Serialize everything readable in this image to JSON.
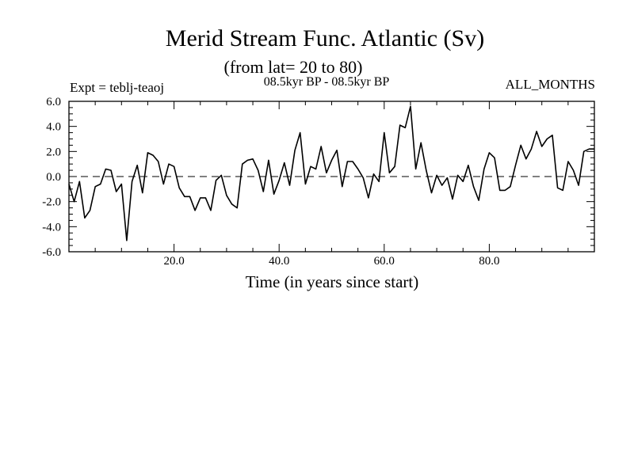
{
  "chart_data": {
    "type": "line",
    "title": "Merid Stream Func. Atlantic (Sv)",
    "subtitle": "(from lat= 20 to 80)",
    "experiment_label": "Expt = teblj-teaoj",
    "period_label": "08.5kyr BP - 08.5kyr BP",
    "months_label": "ALL_MONTHS",
    "xlabel": "Time (in years since start)",
    "ylabel": "",
    "xlim": [
      0,
      100
    ],
    "ylim": [
      -6,
      6
    ],
    "x_ticks": [
      20,
      40,
      60,
      80
    ],
    "x_tick_labels": [
      "20.0",
      "40.0",
      "60.0",
      "80.0"
    ],
    "y_ticks": [
      -6,
      -4,
      -2,
      0,
      2,
      4,
      6
    ],
    "y_tick_labels": [
      "-6.0",
      "-4.0",
      "-2.0",
      "0.0",
      "2.0",
      "4.0",
      "6.0"
    ],
    "reference_line": 0,
    "series": [
      {
        "name": "teblj-teaoj",
        "x": [
          0,
          1,
          2,
          3,
          4,
          5,
          6,
          7,
          8,
          9,
          10,
          11,
          12,
          13,
          14,
          15,
          16,
          17,
          18,
          19,
          20,
          21,
          22,
          23,
          24,
          25,
          26,
          27,
          28,
          29,
          30,
          31,
          32,
          33,
          34,
          35,
          36,
          37,
          38,
          39,
          40,
          41,
          42,
          43,
          44,
          45,
          46,
          47,
          48,
          49,
          50,
          51,
          52,
          53,
          54,
          55,
          56,
          57,
          58,
          59,
          60,
          61,
          62,
          63,
          64,
          65,
          66,
          67,
          68,
          69,
          70,
          71,
          72,
          73,
          74,
          75,
          76,
          77,
          78,
          79,
          80,
          81,
          82,
          83,
          84,
          85,
          86,
          87,
          88,
          89,
          90,
          91,
          92,
          93,
          94,
          95,
          96,
          97,
          98,
          99,
          100
        ],
        "values": [
          -0.6,
          -2.0,
          -0.4,
          -3.3,
          -2.7,
          -0.8,
          -0.6,
          0.6,
          0.5,
          -1.2,
          -0.6,
          -5.1,
          -0.4,
          0.9,
          -1.3,
          1.9,
          1.7,
          1.2,
          -0.6,
          1.0,
          0.8,
          -0.9,
          -1.6,
          -1.6,
          -2.7,
          -1.7,
          -1.7,
          -2.7,
          -0.3,
          0.1,
          -1.5,
          -2.2,
          -2.5,
          1.0,
          1.3,
          1.4,
          0.5,
          -1.2,
          1.3,
          -1.4,
          -0.3,
          1.1,
          -0.7,
          2.1,
          3.5,
          -0.6,
          0.8,
          0.6,
          2.4,
          0.3,
          1.3,
          2.1,
          -0.8,
          1.2,
          1.2,
          0.6,
          -0.1,
          -1.7,
          0.2,
          -0.4,
          3.5,
          0.3,
          0.8,
          4.1,
          3.9,
          5.6,
          0.6,
          2.7,
          0.5,
          -1.3,
          0.1,
          -0.7,
          -0.1,
          -1.8,
          0.1,
          -0.4,
          0.9,
          -0.8,
          -1.9,
          0.6,
          1.9,
          1.5,
          -1.1,
          -1.1,
          -0.8,
          0.9,
          2.5,
          1.4,
          2.2,
          3.6,
          2.4,
          3.0,
          3.3,
          -0.9,
          -1.1,
          1.2,
          0.5,
          -0.7,
          2.0,
          2.2,
          2.2
        ]
      }
    ]
  }
}
